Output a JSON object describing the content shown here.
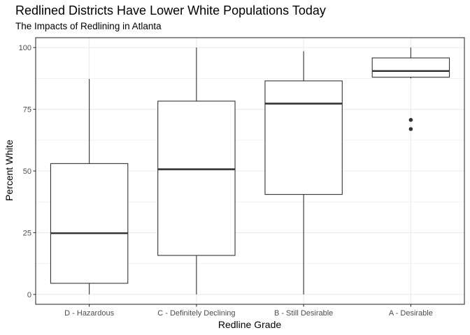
{
  "chart_data": {
    "type": "boxplot",
    "title": "Redlined Districts Have Lower White Populations Today",
    "subtitle": "The Impacts of Redlining in Atlanta",
    "xlabel": "Redline Grade",
    "ylabel": "Percent White",
    "ylim": [
      -4,
      104
    ],
    "yticks": [
      0,
      25,
      50,
      75,
      100
    ],
    "grid": true,
    "categories": [
      "D - Hazardous",
      "C - Definitely Declining",
      "B - Still Desirable",
      "A - Desirable"
    ],
    "boxes": [
      {
        "category": "D - Hazardous",
        "min": 0,
        "q1": 4.5,
        "median": 24.8,
        "q3": 53,
        "max": 87.3,
        "outliers": []
      },
      {
        "category": "C - Definitely Declining",
        "min": 0,
        "q1": 15.8,
        "median": 50.7,
        "q3": 78.3,
        "max": 100,
        "outliers": []
      },
      {
        "category": "B - Still Desirable",
        "min": 0,
        "q1": 40.5,
        "median": 77.3,
        "q3": 86.5,
        "max": 98.5,
        "outliers": []
      },
      {
        "category": "A - Desirable",
        "min": 87.5,
        "q1": 88,
        "median": 90.5,
        "q3": 95.8,
        "max": 100,
        "outliers": [
          70.7,
          67
        ]
      }
    ],
    "colors": {
      "box_stroke": "#333333",
      "grid": "#ebebeb",
      "panel_border": "#333333"
    }
  }
}
